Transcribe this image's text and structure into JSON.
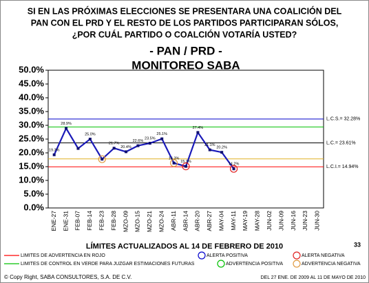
{
  "chart_data": {
    "type": "line",
    "title": [
      "SI EN LAS PRÓXIMAS ELECCIONES SE PRESENTARA UNA COALICIÓN DEL",
      "PAN CON EL PRD Y EL RESTO DE LOS PARTIDOS PARTICIPARAN SÓLOS,",
      "¿POR CUÁL  PARTIDO O COALCIÓN VOTARÍA USTED?"
    ],
    "subtitle": [
      "- PAN / PRD -",
      "MONITOREO SABA"
    ],
    "categories": [
      "ENE-27",
      "ENE-31",
      "FEB-07",
      "FEB-14",
      "FEB-23",
      "FEB-28",
      "MZO-09",
      "MZO-15",
      "MZO-21",
      "MZO-24",
      "ABR-11",
      "ABR-14",
      "ABR-20",
      "ABR-27",
      "MAY-04",
      "MAY-11",
      "MAY-19",
      "MAY-28",
      "JUN-02",
      "JUN-09",
      "JUN-16",
      "JUN-23",
      "JUN-30"
    ],
    "series": [
      {
        "color": "#1a1ab8",
        "values": [
          19.3,
          28.9,
          21.6,
          25.0,
          17.7,
          21.7,
          20.4,
          22.6,
          23.5,
          25.1,
          16.3,
          15.1,
          27.4,
          21.1,
          20.2,
          14.2,
          null,
          null,
          null,
          null,
          null,
          null,
          null
        ],
        "value_labels": [
          "19.3%",
          "28.9%",
          null,
          "25.0%",
          null,
          "21.7%",
          "20.4%",
          "22.6%",
          "23.5%",
          "25.1%",
          "16.3%",
          "15.1%",
          "27.4%",
          "21.1%",
          "20.2%",
          "14.2%",
          null,
          null,
          null,
          null,
          null,
          null,
          null
        ]
      }
    ],
    "ylim": [
      0,
      50
    ],
    "yticks": [
      {
        "value": 0,
        "label": "0.0%"
      },
      {
        "value": 5,
        "label": "5.0%"
      },
      {
        "value": 10,
        "label": "10.0%"
      },
      {
        "value": 15,
        "label": "15.0%"
      },
      {
        "value": 20,
        "label": "20.0%"
      },
      {
        "value": 25,
        "label": "25.0%"
      },
      {
        "value": 30,
        "label": "30.0%"
      },
      {
        "value": 35,
        "label": "35.0%"
      },
      {
        "value": 40,
        "label": "40.0%"
      },
      {
        "value": 45,
        "label": "45.0%"
      },
      {
        "value": 50,
        "label": "50.0%"
      }
    ],
    "reference_lines": [
      {
        "label": "L.C.S.= 32.28%",
        "value": 32.28,
        "color": "#0000cc"
      },
      {
        "value": 29.4,
        "color": "#00c000"
      },
      {
        "label": "L.C.= 23.61%",
        "value": 23.61,
        "color": "#000000"
      },
      {
        "value": 17.8,
        "color": "#e0b020"
      },
      {
        "label": "L.C.I.= 14.94%",
        "value": 14.94,
        "color": "#ff0000"
      }
    ],
    "circles": [
      {
        "index": 4,
        "color": "#e09a40"
      },
      {
        "index": 10,
        "color": "#e09a40"
      },
      {
        "index": 11,
        "color": "#e02020"
      },
      {
        "index": 15,
        "color": "#e02020"
      }
    ],
    "note": "LÍMITES ACTUALIZADOS AL 14 DE FEBRERO DE 2010",
    "page_number": "33",
    "legend_lines": [
      {
        "label": "LIMITES DE ADVERTENCIA EN ROJO",
        "color": "#ff0000"
      },
      {
        "label": "LIMITES DE CONTROL EN VERDE PARA JUZGAR ESTIMACIONES FUTURAS",
        "color": "#00c000"
      }
    ],
    "legend_circles": [
      {
        "label": "ALERTA POSITIVA",
        "color": "#0000cc"
      },
      {
        "label": "ALERTA NEGATIVA",
        "color": "#e02020"
      },
      {
        "label": "ADVERTENCIA POSITIVA",
        "color": "#00c000"
      },
      {
        "label": "ADVERTENCIA NEGATIVA",
        "color": "#e09a40"
      }
    ],
    "copyright": "© Copy Right, SABA CONSULTORES, S.A. DE C.V.",
    "period": "DEL 27 ENE. DE 2009 AL 11 DE MAYO DE 2010"
  }
}
